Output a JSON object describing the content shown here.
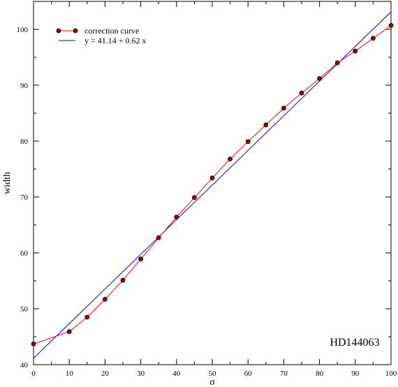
{
  "chart_data": {
    "type": "line",
    "xlabel": "σ",
    "ylabel": "width",
    "xlim": [
      0,
      100
    ],
    "ylim": [
      40,
      105
    ],
    "x_ticks": [
      0,
      10,
      20,
      30,
      40,
      50,
      60,
      70,
      80,
      90,
      100
    ],
    "y_ticks": [
      40,
      50,
      60,
      70,
      80,
      90,
      100
    ],
    "grid": false,
    "legend_position": "top-left",
    "annotation": "HD144063",
    "series": [
      {
        "name": "correction curve",
        "color": "#ff0000",
        "marker_color": "#a00000",
        "marker": "circle",
        "x": [
          0,
          10,
          15,
          20,
          25,
          30,
          35,
          40,
          45,
          50,
          55,
          60,
          65,
          70,
          75,
          80,
          85,
          90,
          95,
          100
        ],
        "y": [
          43.7,
          45.9,
          48.5,
          51.7,
          55.1,
          58.9,
          62.7,
          66.4,
          69.9,
          73.4,
          76.8,
          79.9,
          82.9,
          85.9,
          88.6,
          91.2,
          94.0,
          96.1,
          98.4,
          100.7
        ]
      },
      {
        "name": "y = 41.14 + 0.62 x",
        "color": "#0000ff",
        "type": "fit-line",
        "intercept": 41.14,
        "slope": 0.62,
        "x": [
          0,
          100
        ],
        "y": [
          41.14,
          103.14
        ]
      }
    ]
  }
}
